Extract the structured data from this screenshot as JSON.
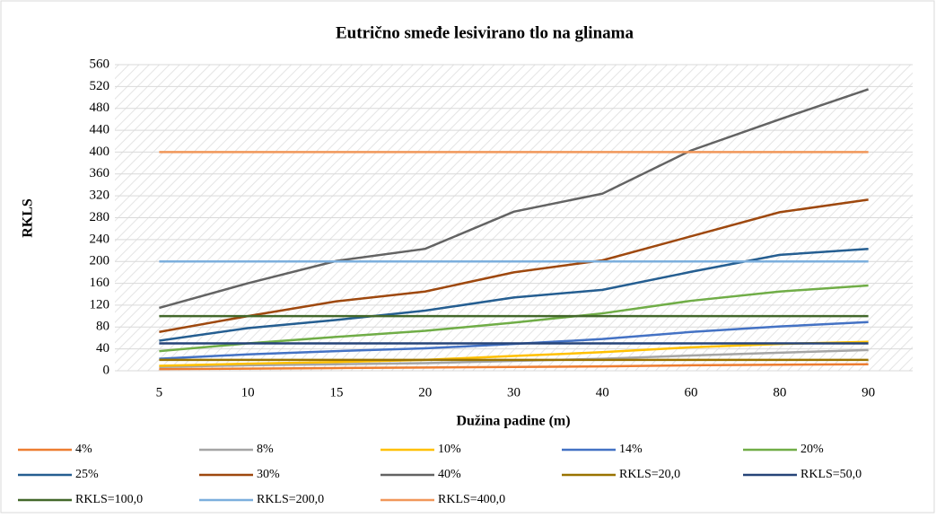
{
  "chart_data": {
    "type": "line",
    "title": "Eutrično smeđe lesivirano tlo na glinama",
    "x_label": "Dužina padine (m)",
    "y_label": "RKLS",
    "categories": [
      "5",
      "10",
      "15",
      "20",
      "30",
      "40",
      "60",
      "80",
      "90"
    ],
    "ylim": [
      0,
      560
    ],
    "yticks": [
      0,
      40,
      80,
      120,
      160,
      200,
      240,
      280,
      320,
      360,
      400,
      440,
      480,
      520,
      560
    ],
    "grid": true,
    "legend": "bottom",
    "series": [
      {
        "name": "4%",
        "color": "#ed7d31",
        "values": [
          3,
          4,
          5,
          6,
          7,
          8,
          10,
          11,
          12
        ]
      },
      {
        "name": "8%",
        "color": "#a5a5a5",
        "values": [
          7,
          10,
          12,
          14,
          18,
          22,
          28,
          33,
          38
        ]
      },
      {
        "name": "10%",
        "color": "#ffc000",
        "values": [
          9,
          13,
          16,
          20,
          27,
          34,
          43,
          49,
          53
        ]
      },
      {
        "name": "14%",
        "color": "#4472c4",
        "values": [
          22,
          30,
          36,
          41,
          49,
          58,
          71,
          81,
          89
        ]
      },
      {
        "name": "20%",
        "color": "#70ad47",
        "values": [
          36,
          50,
          62,
          73,
          88,
          105,
          128,
          145,
          156
        ]
      },
      {
        "name": "25%",
        "color": "#255e91",
        "values": [
          55,
          78,
          93,
          110,
          134,
          148,
          181,
          212,
          223
        ]
      },
      {
        "name": "30%",
        "color": "#9e480e",
        "values": [
          71,
          100,
          127,
          145,
          180,
          202,
          246,
          290,
          313
        ]
      },
      {
        "name": "40%",
        "color": "#636363",
        "values": [
          115,
          160,
          201,
          223,
          291,
          324,
          403,
          460,
          515
        ]
      },
      {
        "name": "RKLS=20,0",
        "color": "#997300",
        "values": [
          20,
          20,
          20,
          20,
          20,
          20,
          20,
          20,
          20
        ]
      },
      {
        "name": "RKLS=50,0",
        "color": "#264478",
        "values": [
          50,
          50,
          50,
          50,
          50,
          50,
          50,
          50,
          50
        ]
      },
      {
        "name": "RKLS=100,0",
        "color": "#43682b",
        "values": [
          100,
          100,
          100,
          100,
          100,
          100,
          100,
          100,
          100
        ]
      },
      {
        "name": "RKLS=200,0",
        "color": "#7cafdd",
        "values": [
          200,
          200,
          200,
          200,
          200,
          200,
          200,
          200,
          200
        ]
      },
      {
        "name": "RKLS=400,0",
        "color": "#f1975a",
        "values": [
          400,
          400,
          400,
          400,
          400,
          400,
          400,
          400,
          400
        ]
      }
    ]
  }
}
